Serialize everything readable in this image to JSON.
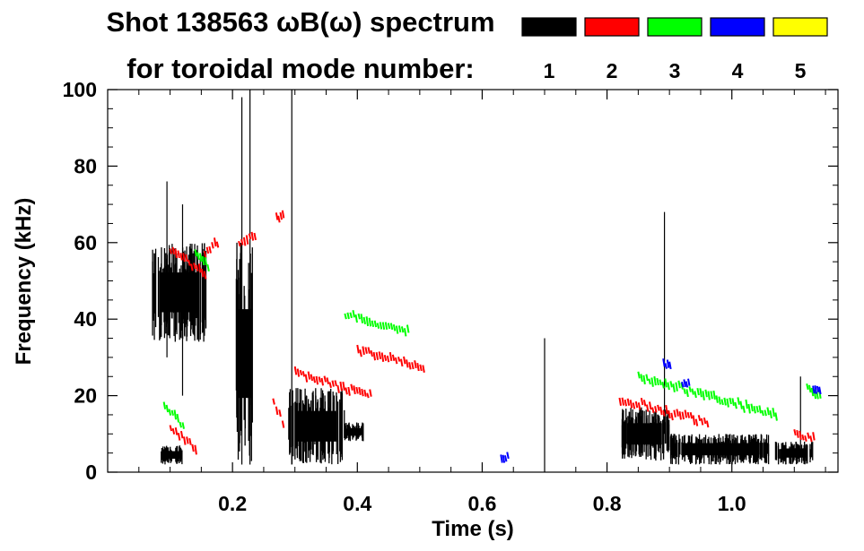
{
  "chart_data": {
    "type": "heatmap",
    "title_line1": "Shot 138563 ωB(ω) spectrum",
    "title_line2": "for toroidal mode number:",
    "xlabel": "Time (s)",
    "ylabel": "Frequency (kHz)",
    "xlim": [
      0.0,
      1.17
    ],
    "ylim": [
      0,
      100
    ],
    "x_ticks": [
      0.2,
      0.4,
      0.6,
      0.8,
      1.0
    ],
    "x_tick_labels": [
      "0.2",
      "0.4",
      "0.6",
      "0.8",
      "1.0"
    ],
    "y_ticks": [
      0,
      20,
      40,
      60,
      80,
      100
    ],
    "y_tick_labels": [
      "0",
      "20",
      "40",
      "60",
      "80",
      "100"
    ],
    "legend": [
      {
        "mode": "1",
        "color": "#000000"
      },
      {
        "mode": "2",
        "color": "#ff0000"
      },
      {
        "mode": "3",
        "color": "#00ff00"
      },
      {
        "mode": "4",
        "color": "#0000ff"
      },
      {
        "mode": "5",
        "color": "#ffff00"
      }
    ],
    "series": [
      {
        "name": "n=1",
        "mode": 1,
        "color": "#000000",
        "regions": [
          {
            "t": [
              0.07,
              0.16
            ],
            "f": [
              34,
              60
            ]
          },
          {
            "t": [
              0.085,
              0.12
            ],
            "f": [
              2,
              7
            ]
          },
          {
            "t": [
              0.205,
              0.235
            ],
            "f": [
              2,
              60
            ]
          },
          {
            "t": [
              0.29,
              0.38
            ],
            "f": [
              2,
              22
            ]
          },
          {
            "t": [
              0.38,
              0.41
            ],
            "f": [
              8,
              13
            ]
          },
          {
            "t": [
              0.82,
              0.9
            ],
            "f": [
              3,
              17
            ]
          },
          {
            "t": [
              0.9,
              1.06
            ],
            "f": [
              2,
              10
            ]
          },
          {
            "t": [
              1.07,
              1.13
            ],
            "f": [
              2,
              8
            ]
          }
        ],
        "spikes": [
          {
            "t": 0.095,
            "f": [
              30,
              76
            ]
          },
          {
            "t": 0.12,
            "f": [
              20,
              70
            ]
          },
          {
            "t": 0.215,
            "f": [
              2,
              98
            ]
          },
          {
            "t": 0.228,
            "f": [
              2,
              100
            ]
          },
          {
            "t": 0.295,
            "f": [
              2,
              100
            ]
          },
          {
            "t": 0.7,
            "f": [
              0,
              35
            ]
          },
          {
            "t": 0.892,
            "f": [
              10,
              68
            ]
          },
          {
            "t": 1.11,
            "f": [
              5,
              25
            ]
          }
        ]
      },
      {
        "name": "n=2",
        "mode": 2,
        "color": "#ff0000",
        "tracks": [
          {
            "t": [
              0.1,
              0.155
            ],
            "f": [
              58,
              52
            ]
          },
          {
            "t": [
              0.155,
              0.175
            ],
            "f": [
              57,
              60
            ]
          },
          {
            "t": [
              0.21,
              0.235
            ],
            "f": [
              60,
              62
            ]
          },
          {
            "t": [
              0.27,
              0.28
            ],
            "f": [
              66,
              67
            ]
          },
          {
            "t": [
              0.3,
              0.42
            ],
            "f": [
              26,
              20
            ]
          },
          {
            "t": [
              0.4,
              0.505
            ],
            "f": [
              32,
              27
            ]
          },
          {
            "t": [
              0.265,
              0.28
            ],
            "f": [
              18,
              13
            ]
          },
          {
            "t": [
              0.1,
              0.14
            ],
            "f": [
              12,
              6
            ]
          },
          {
            "t": [
              0.82,
              0.96
            ],
            "f": [
              19,
              13
            ]
          },
          {
            "t": [
              1.1,
              1.13
            ],
            "f": [
              10,
              9
            ]
          }
        ]
      },
      {
        "name": "n=3",
        "mode": 3,
        "color": "#00ff00",
        "tracks": [
          {
            "t": [
              0.38,
              0.48
            ],
            "f": [
              41,
              37
            ]
          },
          {
            "t": [
              0.14,
              0.16
            ],
            "f": [
              57,
              54
            ]
          },
          {
            "t": [
              0.09,
              0.12
            ],
            "f": [
              18,
              12
            ]
          },
          {
            "t": [
              0.85,
              1.07
            ],
            "f": [
              25,
              15
            ]
          },
          {
            "t": [
              1.12,
              1.14
            ],
            "f": [
              22,
              20
            ]
          }
        ]
      },
      {
        "name": "n=4",
        "mode": 4,
        "color": "#0000ff",
        "tracks": [
          {
            "t": [
              0.63,
              0.64
            ],
            "f": [
              4,
              4
            ]
          },
          {
            "t": [
              0.89,
              0.9
            ],
            "f": [
              28,
              28
            ]
          },
          {
            "t": [
              0.92,
              0.93
            ],
            "f": [
              23,
              23
            ]
          },
          {
            "t": [
              1.13,
              1.14
            ],
            "f": [
              22,
              21
            ]
          }
        ]
      },
      {
        "name": "n=5",
        "mode": 5,
        "color": "#ffff00",
        "tracks": []
      }
    ]
  }
}
